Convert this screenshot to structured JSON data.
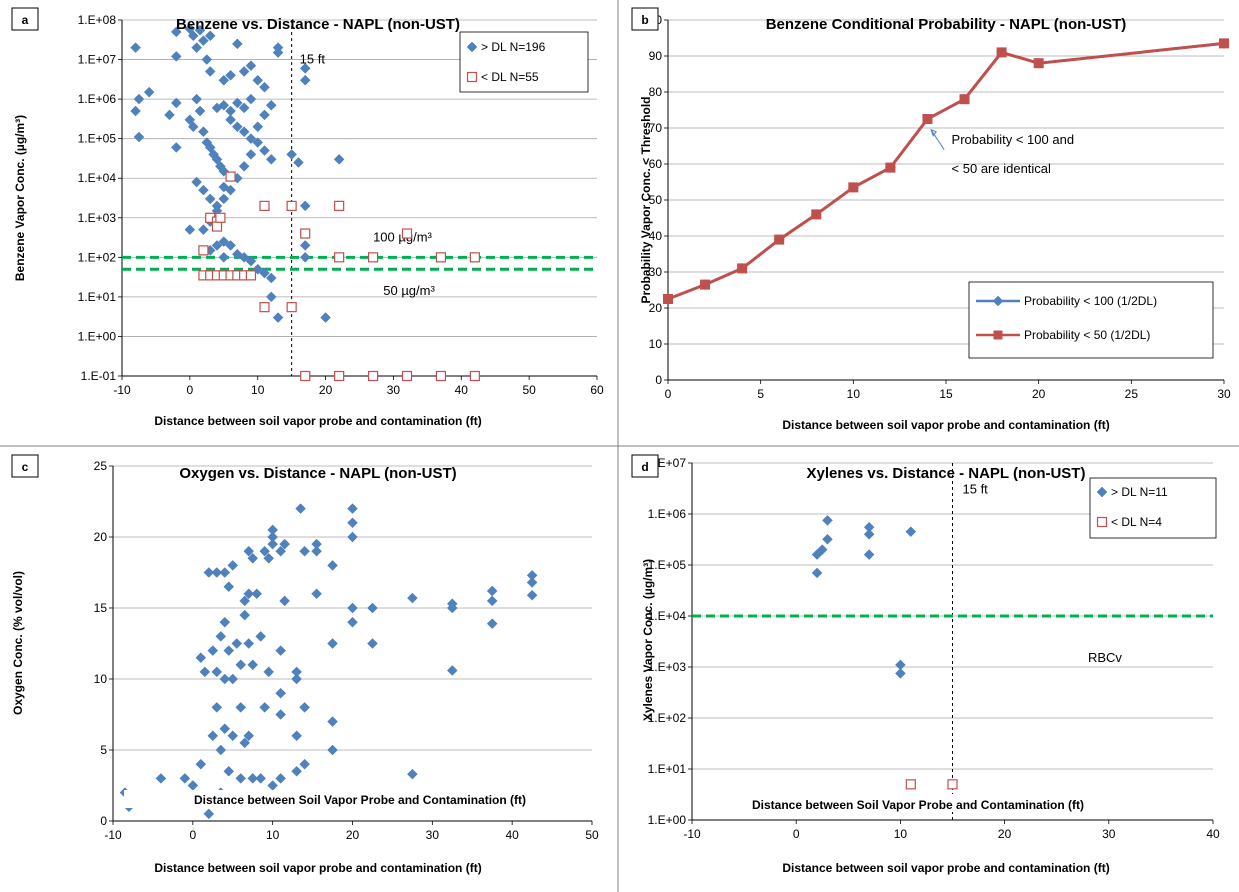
{
  "chart_data": [
    {
      "panel": "a",
      "type": "scatter",
      "title": "Benzene vs. Distance - NAPL (non-UST)",
      "xlabel": "Distance between soil vapor probe and contamination (ft)",
      "ylabel": "Benzene Vapor Conc. (µg/m³)",
      "xlim": [
        -10,
        60
      ],
      "ylim": [
        0.1,
        100000000
      ],
      "yscale": "log",
      "xticks": [
        "-10",
        "0",
        "10",
        "20",
        "30",
        "40",
        "50",
        "60"
      ],
      "yticks": [
        "1.E-01",
        "1.E+00",
        "1.E+01",
        "1.E+02",
        "1.E+03",
        "1.E+04",
        "1.E+05",
        "1.E+06",
        "1.E+07",
        "1.E+08"
      ],
      "grid": "horizontal",
      "legend_position": "top-right",
      "annotations": [
        "15 ft",
        "100 µg/m³",
        "50 µg/m³"
      ],
      "vline_x": 15,
      "hlines": [
        100,
        50
      ],
      "colors": {
        "detect": "#4f81bd",
        "nondetect": "#c0504d",
        "threshold": "#00b050"
      },
      "series": [
        {
          "name": "> DL  N=196",
          "marker": "diamond",
          "points": [
            [
              -8,
              20000000
            ],
            [
              -7.5,
              1000000
            ],
            [
              -8,
              500000
            ],
            [
              -7.5,
              110000
            ],
            [
              -6,
              1500000
            ],
            [
              -3,
              400000
            ],
            [
              -2,
              800000
            ],
            [
              -2,
              60000
            ],
            [
              -2,
              12000000
            ],
            [
              -2,
              50000000
            ],
            [
              0,
              60000000
            ],
            [
              0.5,
              40000000
            ],
            [
              1,
              20000000
            ],
            [
              1.5,
              55000000
            ],
            [
              2,
              30000000
            ],
            [
              2.5,
              10000000
            ],
            [
              3,
              5000000
            ],
            [
              3,
              40000000
            ],
            [
              0,
              300000
            ],
            [
              0.5,
              200000
            ],
            [
              1,
              1000000
            ],
            [
              1.5,
              500000
            ],
            [
              2,
              150000
            ],
            [
              2.5,
              80000
            ],
            [
              3,
              60000
            ],
            [
              3.5,
              40000
            ],
            [
              4,
              30000
            ],
            [
              4.5,
              20000
            ],
            [
              5,
              15000
            ],
            [
              1,
              8000
            ],
            [
              2,
              5000
            ],
            [
              3,
              3000
            ],
            [
              4,
              2000
            ],
            [
              5,
              6000
            ],
            [
              6,
              500000
            ],
            [
              7,
              800000
            ],
            [
              8,
              5000000
            ],
            [
              9,
              7000000
            ],
            [
              7,
              25000000
            ],
            [
              6,
              4000000
            ],
            [
              5,
              3000000
            ],
            [
              6,
              300000
            ],
            [
              7,
              200000
            ],
            [
              8,
              150000
            ],
            [
              9,
              100000
            ],
            [
              10,
              80000
            ],
            [
              11,
              50000
            ],
            [
              12,
              30000
            ],
            [
              13,
              20000000
            ],
            [
              13,
              15000000
            ],
            [
              12,
              700000
            ],
            [
              11,
              400000
            ],
            [
              10,
              200000
            ],
            [
              9,
              40000
            ],
            [
              8,
              20000
            ],
            [
              7,
              10000
            ],
            [
              6,
              5000
            ],
            [
              5,
              3000
            ],
            [
              4,
              1500
            ],
            [
              3,
              800
            ],
            [
              2,
              500
            ],
            [
              5,
              250
            ],
            [
              6,
              200
            ],
            [
              7,
              120
            ],
            [
              8,
              100
            ],
            [
              9,
              80
            ],
            [
              10,
              50
            ],
            [
              11,
              40
            ],
            [
              12,
              30
            ],
            [
              12,
              10
            ],
            [
              13,
              3
            ],
            [
              20,
              3
            ],
            [
              17,
              6000000
            ],
            [
              17,
              3000000
            ],
            [
              15,
              40000
            ],
            [
              16,
              25000
            ],
            [
              17,
              2000
            ],
            [
              17,
              200
            ],
            [
              17,
              100
            ],
            [
              22,
              30000
            ],
            [
              0,
              500
            ],
            [
              5,
              100
            ],
            [
              4,
              200
            ],
            [
              3,
              150
            ],
            [
              10,
              3000000
            ],
            [
              11,
              2000000
            ],
            [
              9,
              1000000
            ],
            [
              8,
              600000
            ],
            [
              5,
              700000
            ],
            [
              4,
              600000
            ]
          ]
        },
        {
          "name": "< DL  N=55",
          "marker": "open-square",
          "points": [
            [
              2,
              150
            ],
            [
              2,
              35
            ],
            [
              3,
              35
            ],
            [
              4,
              35
            ],
            [
              5,
              35
            ],
            [
              6,
              35
            ],
            [
              7,
              35
            ],
            [
              8,
              35
            ],
            [
              9,
              35
            ],
            [
              3,
              1000
            ],
            [
              4,
              800
            ],
            [
              4,
              600
            ],
            [
              4.5,
              1000
            ],
            [
              6,
              11000
            ],
            [
              11,
              2000
            ],
            [
              15,
              2000
            ],
            [
              17,
              400
            ],
            [
              22,
              2000
            ],
            [
              32,
              400
            ],
            [
              11,
              5.5
            ],
            [
              15,
              5.5
            ],
            [
              22,
              100
            ],
            [
              27,
              100
            ],
            [
              37,
              100
            ],
            [
              42,
              100
            ],
            [
              17,
              0.1
            ],
            [
              22,
              0.1
            ],
            [
              27,
              0.1
            ],
            [
              32,
              0.1
            ],
            [
              37,
              0.1
            ],
            [
              42,
              0.1
            ]
          ]
        }
      ]
    },
    {
      "panel": "b",
      "type": "line",
      "title": "Benzene Conditional Probability - NAPL (non-UST)",
      "xlabel": "Distance between soil vapor probe and contamination (ft)",
      "ylabel": "Probability Vapor Conc. < Threshold",
      "xlim": [
        0,
        30
      ],
      "ylim": [
        0,
        100
      ],
      "xticks": [
        "0",
        "5",
        "10",
        "15",
        "20",
        "25",
        "30"
      ],
      "yticks": [
        "0",
        "10",
        "20",
        "30",
        "40",
        "50",
        "60",
        "70",
        "80",
        "90",
        "100"
      ],
      "grid": "horizontal",
      "legend_position": "bottom-right",
      "annotation": "Probability < 100 and < 50 are identical",
      "x": [
        0,
        2,
        4,
        6,
        8,
        10,
        12,
        14,
        16,
        18,
        20,
        30
      ],
      "series": [
        {
          "name": "Probability < 100 (1/2DL)",
          "color": "#4f81bd",
          "marker": "diamond",
          "values": [
            22.5,
            26.5,
            31,
            39,
            46,
            53.5,
            59,
            72.5,
            78,
            91,
            88,
            93.5
          ]
        },
        {
          "name": "Probability < 50 (1/2DL)",
          "color": "#c0504d",
          "marker": "square",
          "values": [
            22.5,
            26.5,
            31,
            39,
            46,
            53.5,
            59,
            72.5,
            78,
            91,
            88,
            93.5
          ]
        }
      ]
    },
    {
      "panel": "c",
      "type": "scatter",
      "title": "Oxygen vs. Distance - NAPL (non-UST)",
      "xlabel": "Distance between soil vapor probe and contamination (ft)",
      "inner_label": "Distance between Soil Vapor Probe and Contamination (ft)",
      "ylabel": "Oxygen Conc. (% vol/vol)",
      "xlim": [
        -10,
        50
      ],
      "ylim": [
        0,
        25
      ],
      "xticks": [
        "-10",
        "0",
        "10",
        "20",
        "30",
        "40",
        "50"
      ],
      "yticks": [
        "0",
        "5",
        "10",
        "15",
        "20",
        "25"
      ],
      "grid": "horizontal",
      "color": "#4f81bd",
      "points": [
        [
          -8.5,
          2
        ],
        [
          -8,
          1
        ],
        [
          -4,
          3
        ],
        [
          -1,
          3
        ],
        [
          0,
          2.5
        ],
        [
          0.5,
          1.5
        ],
        [
          1,
          4
        ],
        [
          1,
          11.5
        ],
        [
          1.5,
          10.5
        ],
        [
          2,
          0.5
        ],
        [
          2,
          17.5
        ],
        [
          2.5,
          12
        ],
        [
          2.5,
          6
        ],
        [
          3,
          17.5
        ],
        [
          3,
          10.5
        ],
        [
          3,
          8
        ],
        [
          3.5,
          13
        ],
        [
          3.5,
          5
        ],
        [
          3.5,
          2
        ],
        [
          4,
          17.5
        ],
        [
          4,
          14
        ],
        [
          4,
          10
        ],
        [
          4,
          6.5
        ],
        [
          4.5,
          16.5
        ],
        [
          4.5,
          12
        ],
        [
          4.5,
          3.5
        ],
        [
          5,
          18
        ],
        [
          5,
          10
        ],
        [
          5,
          6
        ],
        [
          5.5,
          12.5
        ],
        [
          6,
          11
        ],
        [
          6,
          8
        ],
        [
          6,
          3
        ],
        [
          6.5,
          15.5
        ],
        [
          6.5,
          14.5
        ],
        [
          6.5,
          5.5
        ],
        [
          7,
          19
        ],
        [
          7,
          16
        ],
        [
          7,
          12.5
        ],
        [
          7,
          6
        ],
        [
          7.5,
          18.5
        ],
        [
          7.5,
          11
        ],
        [
          7.5,
          3
        ],
        [
          8,
          16
        ],
        [
          8.5,
          13
        ],
        [
          8.5,
          3
        ],
        [
          9,
          19
        ],
        [
          9,
          8
        ],
        [
          9.5,
          18.5
        ],
        [
          9.5,
          10.5
        ],
        [
          10,
          20.5
        ],
        [
          10,
          20
        ],
        [
          10,
          19.5
        ],
        [
          10,
          2.5
        ],
        [
          11,
          19
        ],
        [
          11,
          12
        ],
        [
          11,
          9
        ],
        [
          11,
          3
        ],
        [
          11.5,
          19.5
        ],
        [
          11.5,
          15.5
        ],
        [
          11,
          7.5
        ],
        [
          13,
          10
        ],
        [
          13,
          10.5
        ],
        [
          13,
          6
        ],
        [
          13,
          3.5
        ],
        [
          13.5,
          22
        ],
        [
          14,
          19
        ],
        [
          14,
          4
        ],
        [
          14,
          8
        ],
        [
          15.5,
          19.5
        ],
        [
          15.5,
          19
        ],
        [
          15.5,
          16
        ],
        [
          17.5,
          18
        ],
        [
          17.5,
          12.5
        ],
        [
          17.5,
          7
        ],
        [
          17.5,
          5
        ],
        [
          20,
          22
        ],
        [
          20,
          21
        ],
        [
          20,
          20
        ],
        [
          20,
          15
        ],
        [
          20,
          14
        ],
        [
          22.5,
          15
        ],
        [
          22.5,
          12.5
        ],
        [
          27.5,
          15.7
        ],
        [
          27.5,
          3.3
        ],
        [
          32.5,
          15.3
        ],
        [
          32.5,
          15
        ],
        [
          32.5,
          10.6
        ],
        [
          37.5,
          16.2
        ],
        [
          37.5,
          15.5
        ],
        [
          37.5,
          13.9
        ],
        [
          42.5,
          17.3
        ],
        [
          42.5,
          16.8
        ],
        [
          42.5,
          15.9
        ]
      ]
    },
    {
      "panel": "d",
      "type": "scatter",
      "title": "Xylenes vs. Distance  - NAPL (non-UST)",
      "xlabel": "Distance between soil vapor probe and contamination (ft)",
      "inner_label": "Distance between Soil Vapor Probe and Contamination (ft)",
      "ylabel": "Xylenes Vapor Conc. (µg/m³)",
      "xlim": [
        -10,
        40
      ],
      "ylim": [
        1,
        10000000
      ],
      "yscale": "log",
      "xticks": [
        "-10",
        "0",
        "10",
        "20",
        "30",
        "40"
      ],
      "yticks": [
        "1.E+00",
        "1.E+01",
        "1.E+02",
        "1.E+03",
        "1.E+04",
        "1.E+05",
        "1.E+06",
        "1.E+07"
      ],
      "grid": "horizontal",
      "legend_position": "top-right",
      "annotations": [
        "15 ft",
        "RBCv"
      ],
      "vline_x": 15,
      "hlines": [
        10000
      ],
      "colors": {
        "detect": "#4f81bd",
        "nondetect": "#c0504d",
        "threshold": "#00b050"
      },
      "series": [
        {
          "name": "> DL  N=11",
          "marker": "diamond",
          "points": [
            [
              2,
              160000
            ],
            [
              2,
              70000
            ],
            [
              3,
              750000
            ],
            [
              3,
              320000
            ],
            [
              7,
              550000
            ],
            [
              7,
              400000
            ],
            [
              7,
              160000
            ],
            [
              11,
              450000
            ],
            [
              10,
              1100
            ],
            [
              10,
              750
            ],
            [
              2.5,
              200000
            ]
          ]
        },
        {
          "name": "< DL  N=4",
          "marker": "open-square",
          "points": [
            [
              11,
              5
            ],
            [
              15,
              5
            ]
          ]
        }
      ]
    }
  ]
}
